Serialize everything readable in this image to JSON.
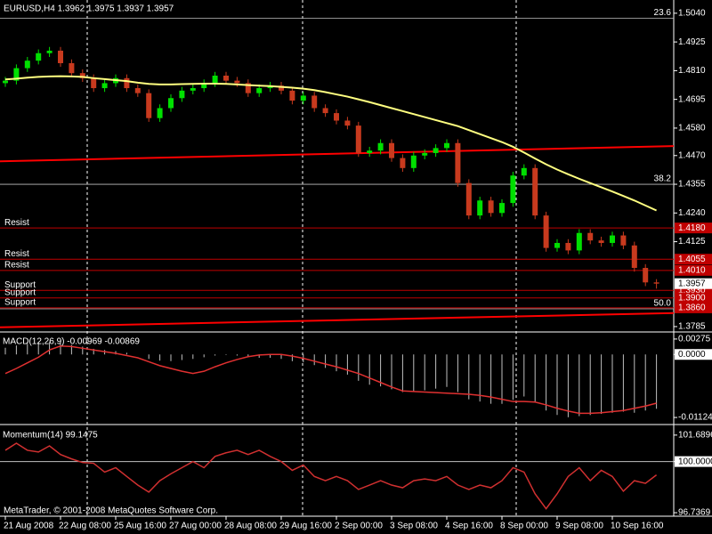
{
  "chart_data": [
    {
      "type": "candlestick",
      "title": "EURUSD,H4  1.3962 1.3975 1.3937 1.3957",
      "categories": [
        "21 Aug 2008",
        null,
        null,
        null,
        null,
        "22 Aug 08:00",
        null,
        null,
        null,
        null,
        "25 Aug 16:00",
        null,
        null,
        null,
        null,
        "27 Aug 00:00",
        null,
        null,
        null,
        null,
        "28 Aug 08:00",
        null,
        null,
        null,
        null,
        "29 Aug 16:00",
        null,
        null,
        null,
        null,
        "2 Sep 00:00",
        null,
        null,
        null,
        null,
        "3 Sep 08:00",
        null,
        null,
        null,
        null,
        "4 Sep 16:00",
        null,
        null,
        null,
        null,
        "8 Sep 00:00",
        null,
        null,
        null,
        null,
        "9 Sep 08:00",
        null,
        null,
        null,
        null,
        "10 Sep 16:00",
        null,
        null,
        null,
        null
      ],
      "open": [
        1.476,
        1.477,
        1.482,
        1.485,
        1.488,
        1.489,
        1.484,
        1.48,
        1.478,
        1.474,
        1.476,
        1.478,
        1.474,
        1.472,
        1.462,
        1.466,
        1.47,
        1.473,
        1.474,
        1.476,
        1.479,
        1.477,
        1.476,
        1.472,
        1.474,
        1.475,
        1.473,
        1.469,
        1.471,
        1.466,
        1.464,
        1.461,
        1.459,
        1.448,
        1.449,
        1.452,
        1.446,
        1.442,
        1.447,
        1.448,
        1.45,
        1.452,
        1.436,
        1.423,
        1.429,
        1.424,
        1.428,
        1.439,
        1.442,
        1.423,
        1.41,
        1.412,
        1.409,
        1.416,
        1.413,
        1.412,
        1.415,
        1.411,
        1.402,
        1.3962
      ],
      "high": [
        1.4785,
        1.4835,
        1.4865,
        1.4895,
        1.4905,
        1.4905,
        1.4855,
        1.4815,
        1.4795,
        1.4775,
        1.4795,
        1.4795,
        1.4755,
        1.4735,
        1.4675,
        1.4715,
        1.4745,
        1.4755,
        1.4775,
        1.4805,
        1.4805,
        1.4785,
        1.4775,
        1.4755,
        1.4765,
        1.4765,
        1.4745,
        1.4725,
        1.4725,
        1.4675,
        1.4655,
        1.4625,
        1.4605,
        1.4505,
        1.4535,
        1.4535,
        1.4475,
        1.4485,
        1.4495,
        1.4515,
        1.4535,
        1.4535,
        1.4375,
        1.4305,
        1.4305,
        1.4295,
        1.4405,
        1.4435,
        1.4435,
        1.4245,
        1.4135,
        1.4135,
        1.4175,
        1.4175,
        1.4145,
        1.4165,
        1.4165,
        1.4125,
        1.4035,
        1.3975
      ],
      "low": [
        1.4745,
        1.4755,
        1.4805,
        1.4835,
        1.4865,
        1.4825,
        1.4785,
        1.4765,
        1.4725,
        1.4725,
        1.4745,
        1.4725,
        1.4705,
        1.4605,
        1.4605,
        1.4645,
        1.4685,
        1.4715,
        1.4725,
        1.4745,
        1.4755,
        1.4745,
        1.4705,
        1.4705,
        1.4725,
        1.4715,
        1.4675,
        1.4675,
        1.4645,
        1.4625,
        1.4595,
        1.4575,
        1.4465,
        1.4465,
        1.4475,
        1.4445,
        1.4405,
        1.4405,
        1.4455,
        1.4465,
        1.4485,
        1.4345,
        1.4215,
        1.4215,
        1.4225,
        1.4225,
        1.4265,
        1.4375,
        1.4215,
        1.4085,
        1.4085,
        1.4075,
        1.4075,
        1.4115,
        1.4105,
        1.4105,
        1.4095,
        1.4005,
        1.3947,
        1.3937
      ],
      "close": [
        1.477,
        1.482,
        1.485,
        1.488,
        1.489,
        1.484,
        1.48,
        1.478,
        1.474,
        1.476,
        1.478,
        1.474,
        1.472,
        1.462,
        1.466,
        1.47,
        1.473,
        1.474,
        1.476,
        1.479,
        1.477,
        1.476,
        1.472,
        1.474,
        1.475,
        1.473,
        1.469,
        1.471,
        1.466,
        1.464,
        1.461,
        1.459,
        1.448,
        1.449,
        1.452,
        1.446,
        1.442,
        1.447,
        1.448,
        1.45,
        1.452,
        1.436,
        1.423,
        1.429,
        1.424,
        1.428,
        1.439,
        1.442,
        1.423,
        1.41,
        1.412,
        1.409,
        1.416,
        1.413,
        1.412,
        1.415,
        1.411,
        1.402,
        1.3962,
        1.3957
      ],
      "up_color": "#00e000",
      "down_color": "#c83a1e",
      "lines": [
        {
          "color": "#ffff80",
          "values": [
            1.4775,
            1.4778,
            1.4782,
            1.4785,
            1.4787,
            1.4788,
            1.4787,
            1.4785,
            1.478,
            1.4776,
            1.4772,
            1.4768,
            1.4762,
            1.4757,
            1.4755,
            1.4755,
            1.4756,
            1.4757,
            1.4758,
            1.4758,
            1.4757,
            1.4755,
            1.4752,
            1.475,
            1.4748,
            1.4745,
            1.4742,
            1.4738,
            1.4732,
            1.4724,
            1.4715,
            1.4706,
            1.4695,
            1.4684,
            1.4672,
            1.466,
            1.4648,
            1.4636,
            1.4624,
            1.4612,
            1.46,
            1.4588,
            1.4572,
            1.4556,
            1.454,
            1.4524,
            1.4505,
            1.4482,
            1.4458,
            1.4435,
            1.4414,
            1.4395,
            1.4377,
            1.436,
            1.4343,
            1.4326,
            1.4308,
            1.429,
            1.427,
            1.425
          ]
        }
      ],
      "trendlines": [
        {
          "color": "#ff0000",
          "start": 1.4447,
          "end": 1.4508
        },
        {
          "color": "#ff0000",
          "start": 1.3782,
          "end": 1.3839
        }
      ],
      "levels": [
        {
          "label": "Resist",
          "price": {
            "value": 1.418,
            "label": "1.4180"
          }
        },
        {
          "label": "Resist",
          "price": 1.4055
        },
        {
          "label": "Resist",
          "price": {
            "value": 1.401,
            "label": "1.4010"
          }
        },
        {
          "label": "Support",
          "price": {
            "value": 1.393,
            "label": "1.3930"
          }
        },
        {
          "label": "Support",
          "price": {
            "value": 1.39,
            "label": "1.3900"
          }
        },
        {
          "label": "Support",
          "price": {
            "value": 1.386,
            "label": "1.3860"
          }
        }
      ],
      "level_color": "#c00000",
      "fib": [
        {
          "label": "23.6",
          "price": 1.502
        },
        {
          "label": "38.2",
          "price": 1.4355
        },
        {
          "label": "50.0",
          "price": 1.3856
        }
      ],
      "fib_color": "#c0c0c0",
      "last": 1.3957,
      "ylim": [
        1.3767,
        1.5093
      ],
      "yticks": [
        {
          "value": 1.504,
          "label": "1.5040"
        },
        1.4925,
        {
          "value": 1.481,
          "label": "1.4810"
        },
        1.4695,
        {
          "value": 1.458,
          "label": "1.4580"
        },
        {
          "value": 1.447,
          "label": "1.4470"
        },
        1.4355,
        {
          "value": 1.424,
          "label": "1.4240"
        },
        1.4125,
        1.3785
      ]
    },
    {
      "type": "macd",
      "title": "MACD(12,26,9) -0.00969 -0.00869",
      "histogram": {
        "color": "#c0c0c0",
        "values": [
          0.0012,
          0.0016,
          0.0019,
          0.0021,
          0.0022,
          0.002,
          0.0017,
          0.0014,
          0.001,
          0.0008,
          0.0006,
          0.0003,
          0.0,
          -0.0008,
          -0.0011,
          -0.0012,
          -0.001,
          -0.0008,
          -0.0005,
          -0.0002,
          -0.0001,
          -0.0002,
          -0.0005,
          -0.0006,
          -0.0006,
          -0.0008,
          -0.0012,
          -0.0014,
          -0.0019,
          -0.0024,
          -0.003,
          -0.0036,
          -0.0047,
          -0.0054,
          -0.0057,
          -0.0062,
          -0.0067,
          -0.0066,
          -0.0064,
          -0.0061,
          -0.0058,
          -0.0067,
          -0.008,
          -0.0084,
          -0.0088,
          -0.0088,
          -0.0081,
          -0.0075,
          -0.0086,
          -0.01,
          -0.0108,
          -0.0112,
          -0.011,
          -0.0108,
          -0.0106,
          -0.0104,
          -0.0102,
          -0.0104,
          -0.01,
          -0.00969
        ]
      },
      "signal": {
        "color": "#e03030",
        "values": [
          -0.0034,
          -0.0025,
          -0.0015,
          -0.0005,
          0.0008,
          0.0015,
          0.0014,
          0.0011,
          0.0008,
          0.0005,
          0.0002,
          -0.0002,
          -0.0006,
          -0.0013,
          -0.002,
          -0.0025,
          -0.003,
          -0.0034,
          -0.003,
          -0.0022,
          -0.0015,
          -0.0009,
          -0.0004,
          -0.0001,
          0.0,
          0.0,
          -0.0003,
          -0.0007,
          -0.0012,
          -0.0017,
          -0.0022,
          -0.0028,
          -0.0034,
          -0.0042,
          -0.005,
          -0.0058,
          -0.0065,
          -0.0066,
          -0.0067,
          -0.0068,
          -0.0069,
          -0.007,
          -0.0071,
          -0.0073,
          -0.0076,
          -0.008,
          -0.0084,
          -0.0084,
          -0.0085,
          -0.009,
          -0.0096,
          -0.0101,
          -0.0105,
          -0.0105,
          -0.0104,
          -0.0102,
          -0.01,
          -0.0096,
          -0.0092,
          -0.00869
        ]
      },
      "ylim": [
        -0.01234,
        0.00369
      ],
      "yticks": [
        0.00275,
        {
          "value": 0,
          "label": "0.0000",
          "boxed": true
        },
        -0.01124
      ]
    },
    {
      "type": "line",
      "title": "Momentum(14) 99.1475",
      "color": "#d03030",
      "values": [
        100.72,
        101.17,
        100.72,
        100.61,
        101.0,
        100.45,
        100.17,
        99.94,
        99.89,
        99.33,
        99.61,
        99.05,
        98.5,
        98.05,
        98.78,
        99.22,
        99.61,
        100.0,
        99.61,
        100.33,
        100.56,
        100.72,
        100.45,
        100.72,
        100.33,
        100.0,
        99.44,
        99.78,
        99.05,
        98.78,
        99.05,
        98.78,
        98.22,
        98.5,
        98.78,
        98.5,
        98.33,
        98.78,
        98.89,
        98.78,
        99.05,
        98.5,
        98.22,
        98.5,
        98.33,
        98.78,
        99.61,
        99.33,
        97.94,
        96.99,
        97.94,
        99.05,
        99.61,
        98.78,
        99.44,
        99.05,
        98.11,
        98.78,
        98.61,
        99.1475
      ],
      "ylim": [
        96.57,
        102.25
      ],
      "yticks": [
        101.6896,
        {
          "value": 100,
          "label": "100.0000",
          "boxed": true,
          "line": true
        },
        96.7369
      ]
    }
  ],
  "footer": "MetaTrader, © 2001-2008 MetaQuotes Software Corp."
}
